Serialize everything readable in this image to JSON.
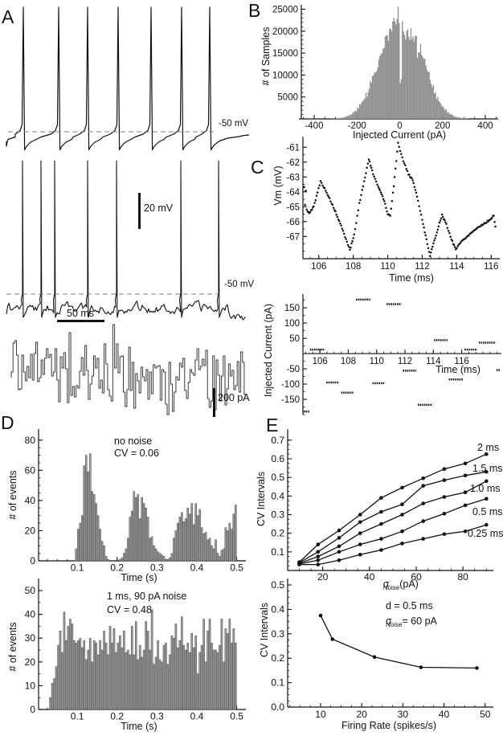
{
  "panels": {
    "A": {
      "letter": "A",
      "top_trace": {
        "threshold_label": "-50 mV",
        "spike_x": [
          21,
          65,
          101,
          139,
          180,
          218,
          253
        ]
      },
      "middle_trace": {
        "threshold_label": "-50 mV",
        "spike_x": [
          23,
          46,
          63,
          104,
          140,
          220,
          267
        ],
        "v_scalebar": "20 mV",
        "h_scalebar": "50 ms"
      },
      "current_trace": {
        "v_scalebar": "200 pA"
      }
    },
    "B": {
      "letter": "B"
    },
    "C": {
      "letter": "C"
    },
    "D": {
      "letter": "D"
    },
    "E": {
      "letter": "E"
    }
  },
  "chart_data": [
    {
      "id": "B",
      "type": "bar",
      "xlabel": "Injected Current (pA)",
      "ylabel": "# of Samples",
      "xlim": [
        -460,
        460
      ],
      "ylim": [
        0,
        26000
      ],
      "xticks": [
        -400,
        -200,
        0,
        200,
        400
      ],
      "xtick_labels": [
        "-400",
        "-200",
        "0",
        "200",
        "400"
      ],
      "yticks": [
        5000,
        10000,
        15000,
        20000,
        25000
      ],
      "ytick_labels": [
        "5000",
        "10000",
        "15000",
        "20000",
        "25000"
      ],
      "minor_x": 50,
      "minor_y": 1000,
      "bin_start": -320,
      "bin_width": 10,
      "bar_color": "#8f8f8f",
      "values": [
        40,
        70,
        110,
        160,
        230,
        330,
        460,
        620,
        850,
        1100,
        1500,
        1900,
        2450,
        3100,
        3900,
        4800,
        5700,
        6900,
        8000,
        9400,
        10400,
        12100,
        13400,
        15100,
        16000,
        17700,
        18300,
        19700,
        20100,
        21200,
        20700,
        24200,
        9000,
        20600,
        19000,
        20200,
        18400,
        19600,
        17100,
        17900,
        15400,
        16400,
        13800,
        12400,
        11000,
        9800,
        8300,
        7000,
        5900,
        4900,
        4000,
        3200,
        2600,
        2000,
        1550,
        1200,
        900,
        650,
        460,
        320,
        220,
        150,
        100,
        60
      ]
    },
    {
      "id": "C_top",
      "type": "scatter",
      "xlabel": "Time (ms)",
      "ylabel": "Vm (mV)",
      "xlim": [
        105.08,
        116.5
      ],
      "ylim": [
        -68.5,
        -60.5
      ],
      "xticks": [
        106,
        108,
        110,
        112,
        114,
        116
      ],
      "xtick_labels": [
        "106",
        "108",
        "110",
        "112",
        "114",
        "116"
      ],
      "yticks": [
        -61,
        -62,
        -63,
        -64,
        -65,
        -66,
        -67
      ],
      "ytick_labels": [
        "-61",
        "-62",
        "-63",
        "-64",
        "-65",
        "-66",
        "-67"
      ],
      "minor_x": 0.5,
      "minor_y": 0.5,
      "dot_interval_ms": 0.055,
      "vertices": [
        [
          105.15,
          -63.7
        ],
        [
          105.2,
          -64.9
        ],
        [
          105.25,
          -63.9
        ],
        [
          105.3,
          -65.2
        ],
        [
          105.45,
          -65.45
        ],
        [
          105.7,
          -65.0
        ],
        [
          106.1,
          -63.3
        ],
        [
          106.4,
          -63.9
        ],
        [
          106.8,
          -64.9
        ],
        [
          107.3,
          -66.3
        ],
        [
          107.8,
          -67.9
        ],
        [
          108.05,
          -66.9
        ],
        [
          108.35,
          -64.8
        ],
        [
          108.9,
          -61.8
        ],
        [
          109.15,
          -62.8
        ],
        [
          109.45,
          -63.7
        ],
        [
          109.6,
          -64.0
        ],
        [
          109.8,
          -64.6
        ],
        [
          110.0,
          -65.5
        ],
        [
          110.15,
          -65.6
        ],
        [
          110.35,
          -63.6
        ],
        [
          110.6,
          -60.75
        ],
        [
          110.9,
          -61.9
        ],
        [
          111.2,
          -62.8
        ],
        [
          111.45,
          -63.2
        ],
        [
          111.7,
          -64.3
        ],
        [
          112.0,
          -65.9
        ],
        [
          112.25,
          -67.2
        ],
        [
          112.45,
          -68.3
        ],
        [
          112.7,
          -67.3
        ],
        [
          112.95,
          -66.3
        ],
        [
          113.15,
          -65.55
        ],
        [
          113.4,
          -66.2
        ],
        [
          113.7,
          -67.2
        ],
        [
          113.95,
          -67.85
        ],
        [
          114.3,
          -67.3
        ],
        [
          114.7,
          -66.9
        ],
        [
          115.1,
          -66.5
        ],
        [
          115.5,
          -66.2
        ],
        [
          115.9,
          -65.9
        ],
        [
          116.15,
          -65.6
        ],
        [
          116.25,
          -66.35
        ]
      ]
    },
    {
      "id": "C_bottom",
      "type": "steps",
      "xlabel": "Time (ms)",
      "ylabel": "Injected Current (pA)",
      "xlim": [
        104.8,
        118.8
      ],
      "ylim": [
        -200,
        195
      ],
      "xticks": [
        106,
        108,
        110,
        112,
        114,
        116
      ],
      "xtick_labels": [
        "106",
        "108",
        "110",
        "112",
        "114",
        "116"
      ],
      "yticks": [
        150,
        100,
        50,
        -50,
        -100,
        -150
      ],
      "ytick_labels": [
        "150",
        "100",
        "50",
        "-50",
        "-100",
        "-150"
      ],
      "minor_x": 0.5,
      "minor_y": 25,
      "segments": [
        [
          104.85,
          105.25,
          -190
        ],
        [
          105.3,
          106.35,
          13
        ],
        [
          106.45,
          107.35,
          -95
        ],
        [
          107.5,
          108.4,
          -128
        ],
        [
          108.55,
          109.6,
          177
        ],
        [
          109.7,
          110.6,
          -97
        ],
        [
          110.7,
          111.75,
          162
        ],
        [
          111.85,
          112.8,
          -56
        ],
        [
          112.9,
          113.95,
          -168
        ],
        [
          114.05,
          115.0,
          44
        ],
        [
          115.1,
          116.1,
          -85
        ],
        [
          116.2,
          117.1,
          13
        ],
        [
          117.2,
          118.4,
          36
        ],
        [
          118.45,
          118.75,
          -54
        ]
      ]
    },
    {
      "id": "D_top",
      "type": "bar",
      "annotation": [
        "no noise",
        "CV = 0.06"
      ],
      "xlabel": "Time (s)",
      "ylabel": "# of events",
      "xlim": [
        0.003,
        0.523
      ],
      "ylim": [
        0,
        82
      ],
      "xticks": [
        0.1,
        0.2,
        0.3,
        0.4,
        0.5
      ],
      "xtick_labels": [
        "0.1",
        "0.2",
        "0.3",
        "0.4",
        "0.5"
      ],
      "yticks": [
        0,
        20,
        40,
        60,
        80
      ],
      "ytick_labels": [
        "0",
        "20",
        "40",
        "60",
        "80"
      ],
      "minor_x": 0.025,
      "minor_y": 5,
      "bin_start": 0,
      "bin_width": 0.005,
      "bar_color": "#9c9c9c",
      "values": [
        0,
        0,
        0,
        0,
        0,
        0,
        0,
        0,
        0,
        0,
        0,
        0,
        0,
        0,
        0,
        0,
        0,
        0,
        0,
        8,
        21,
        25,
        30,
        63,
        70,
        59,
        71,
        46,
        44,
        38,
        30,
        21,
        13,
        10,
        3,
        1,
        0,
        0,
        0,
        0,
        0,
        1,
        2,
        5,
        8,
        15,
        29,
        33,
        46,
        42,
        44,
        28,
        42,
        38,
        35,
        29,
        15,
        16,
        10,
        8,
        6,
        5,
        4,
        3,
        1,
        1,
        2,
        5,
        15,
        20,
        25,
        29,
        32,
        26,
        28,
        35,
        31,
        38,
        24,
        38,
        30,
        34,
        22,
        18,
        19,
        14,
        15,
        10,
        8,
        14,
        5,
        3,
        7,
        8,
        22,
        20,
        25,
        21,
        31,
        37
      ]
    },
    {
      "id": "D_bottom",
      "type": "bar",
      "annotation": [
        "1 ms, 90 pA noise",
        "CV = 0.48"
      ],
      "xlabel": "Time (s)",
      "ylabel": "# of events",
      "xlim": [
        0.003,
        0.523
      ],
      "ylim": [
        0,
        51.7
      ],
      "xticks": [
        0.1,
        0.2,
        0.3,
        0.4,
        0.5
      ],
      "xtick_labels": [
        "0.1",
        "0.2",
        "0.3",
        "0.4",
        "0.5"
      ],
      "yticks": [
        0,
        10,
        20,
        30,
        40,
        50
      ],
      "ytick_labels": [
        "0",
        "10",
        "20",
        "30",
        "40",
        "50"
      ],
      "minor_x": 0.025,
      "minor_y": 5,
      "bin_start": 0,
      "bin_width": 0.005,
      "bar_color": "#9c9c9c",
      "values": [
        0,
        0,
        0,
        0,
        0,
        0,
        5,
        11,
        13,
        18,
        27,
        33,
        24,
        41,
        29,
        35,
        38,
        36,
        29,
        28,
        29,
        30,
        26,
        29,
        21,
        25,
        30,
        20,
        29,
        28,
        23,
        29,
        25,
        33,
        28,
        23,
        35,
        28,
        34,
        24,
        28,
        31,
        26,
        33,
        24,
        25,
        23,
        35,
        23,
        37,
        21,
        27,
        22,
        25,
        37,
        33,
        25,
        42,
        19,
        22,
        29,
        21,
        20,
        27,
        28,
        19,
        23,
        31,
        30,
        36,
        26,
        29,
        39,
        27,
        25,
        28,
        24,
        32,
        26,
        31,
        15,
        24,
        27,
        38,
        20,
        33,
        38,
        28,
        25,
        25,
        24,
        27,
        38,
        20,
        34,
        32,
        38,
        28,
        34,
        28
      ]
    },
    {
      "id": "E_top",
      "type": "line",
      "ylabel": "CV Intervals",
      "xlabel_parts": {
        "sigma": "σ",
        "sub": "Noise",
        "rest": "(pA)"
      },
      "xlim": [
        5,
        93
      ],
      "ylim": [
        0,
        0.725
      ],
      "xticks": [
        20,
        40,
        60,
        80
      ],
      "xtick_labels": [
        "20",
        "40",
        "60",
        "80"
      ],
      "yticks": [
        0.1,
        0.2,
        0.3,
        0.4,
        0.5,
        0.6,
        0.7
      ],
      "ytick_labels": [
        "0.1",
        "0.2",
        "0.3",
        "0.4",
        "0.5",
        "0.6",
        "0.7"
      ],
      "minor_x": 5,
      "minor_y": 0.025,
      "x": [
        10,
        18,
        27,
        36,
        45,
        54,
        63,
        72,
        81,
        90
      ],
      "series": [
        {
          "name": "2 ms",
          "values": [
            0.045,
            0.14,
            0.215,
            0.3,
            0.39,
            0.445,
            0.495,
            0.545,
            0.575,
            0.625
          ]
        },
        {
          "name": "1.5 ms",
          "values": [
            0.042,
            0.1,
            0.175,
            0.26,
            0.315,
            0.355,
            0.455,
            0.485,
            0.51,
            0.53
          ]
        },
        {
          "name": "1.0 ms",
          "values": [
            0.038,
            0.075,
            0.13,
            0.2,
            0.25,
            0.3,
            0.36,
            0.395,
            0.42,
            0.48
          ]
        },
        {
          "name": "0.5 ms",
          "values": [
            0.035,
            0.055,
            0.1,
            0.14,
            0.17,
            0.21,
            0.265,
            0.305,
            0.35,
            0.385
          ]
        },
        {
          "name": "0.25 ms",
          "values": [
            0.032,
            0.032,
            0.055,
            0.085,
            0.11,
            0.145,
            0.17,
            0.195,
            0.21,
            0.245
          ]
        }
      ]
    },
    {
      "id": "E_bottom",
      "type": "line",
      "xlabel": "Firing Rate (spikes/s)",
      "ylabel": "CV Intervals",
      "annotation_line1": "d = 0.5 ms",
      "annotation_sigma": "σ",
      "annotation_sub": "Noise",
      "annotation_rest": " = 60 pA",
      "xlim": [
        2,
        52
      ],
      "ylim": [
        0,
        0.52
      ],
      "xticks": [
        10,
        20,
        30,
        40,
        50
      ],
      "xtick_labels": [
        "10",
        "20",
        "30",
        "40",
        "50"
      ],
      "yticks": [
        0,
        0.1,
        0.2,
        0.3,
        0.4,
        0.5
      ],
      "ytick_labels": [
        "0.0",
        "0.1",
        "0.2",
        "0.3",
        "0.4",
        "0.5"
      ],
      "minor_x": 2.5,
      "minor_y": 0.025,
      "x": [
        10,
        12.9,
        23.1,
        34.4,
        48
      ],
      "series": [
        {
          "name": "",
          "values": [
            0.375,
            0.278,
            0.205,
            0.163,
            0.16
          ]
        }
      ]
    }
  ]
}
